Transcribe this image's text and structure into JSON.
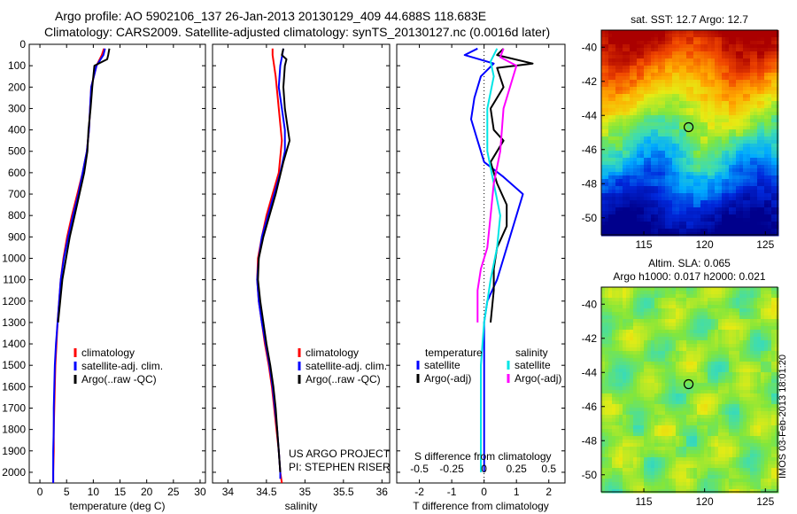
{
  "header": {
    "line1": "Argo profile: AO 5902106_137 26-Jan-2013 20130129_409 44.688S 118.683E",
    "line2": "Climatology: CARS2009. Satellite-adjusted climatology: synTS_20130127.nc (0.0016d later)"
  },
  "stamp": "IMOS 03-Feb-2013 18:01:20",
  "colors": {
    "climatology": "#ff0000",
    "satellite": "#0000ff",
    "argo": "#000000",
    "sat_salinity": "#00e5e5",
    "argo_salinity": "#ff00ff"
  },
  "chart_data": [
    {
      "id": "temperature",
      "type": "line",
      "xlabel": "temperature (deg C)",
      "ylabel": "",
      "xlim": [
        -2,
        31
      ],
      "ylim": [
        2050,
        0
      ],
      "xticks": [
        0,
        5,
        10,
        15,
        20,
        25,
        30
      ],
      "yticks": [
        0,
        100,
        200,
        300,
        400,
        500,
        600,
        700,
        800,
        900,
        1000,
        1100,
        1200,
        1300,
        1400,
        1500,
        1600,
        1700,
        1800,
        1900,
        2000
      ],
      "legend": [
        "climatology",
        "satellite-adj. clim.",
        "Argo(..raw -QC)"
      ],
      "series": [
        {
          "name": "climatology",
          "color": "#ff0000",
          "points": [
            [
              12.0,
              20
            ],
            [
              11.6,
              50
            ],
            [
              10.6,
              100
            ],
            [
              9.6,
              200
            ],
            [
              9.4,
              300
            ],
            [
              9.2,
              400
            ],
            [
              8.8,
              500
            ],
            [
              8.0,
              600
            ],
            [
              7.0,
              700
            ],
            [
              6.0,
              800
            ],
            [
              5.1,
              900
            ],
            [
              4.4,
              1000
            ],
            [
              3.9,
              1100
            ],
            [
              3.6,
              1200
            ],
            [
              3.3,
              1300
            ],
            [
              3.1,
              1400
            ],
            [
              2.9,
              1500
            ],
            [
              2.8,
              1600
            ],
            [
              2.7,
              1700
            ],
            [
              2.6,
              1800
            ],
            [
              2.6,
              1900
            ],
            [
              2.5,
              2000
            ],
            [
              2.5,
              2050
            ]
          ]
        },
        {
          "name": "satellite-adj. clim.",
          "color": "#0000ff",
          "points": [
            [
              12.2,
              20
            ],
            [
              11.9,
              50
            ],
            [
              10.6,
              100
            ],
            [
              9.6,
              200
            ],
            [
              9.4,
              300
            ],
            [
              9.2,
              400
            ],
            [
              8.8,
              500
            ],
            [
              8.0,
              600
            ],
            [
              7.2,
              700
            ],
            [
              6.2,
              800
            ],
            [
              5.3,
              900
            ],
            [
              4.5,
              1000
            ],
            [
              3.9,
              1100
            ],
            [
              3.6,
              1200
            ],
            [
              3.3,
              1300
            ],
            [
              3.0,
              1400
            ],
            [
              2.8,
              1500
            ],
            [
              2.7,
              1600
            ],
            [
              2.6,
              1700
            ],
            [
              2.6,
              1800
            ],
            [
              2.5,
              1900
            ],
            [
              2.5,
              2000
            ],
            [
              2.5,
              2050
            ]
          ]
        },
        {
          "name": "Argo(..raw -QC)",
          "color": "#000000",
          "points": [
            [
              13.0,
              20
            ],
            [
              12.8,
              50
            ],
            [
              12.6,
              70
            ],
            [
              10.2,
              100
            ],
            [
              9.8,
              200
            ],
            [
              9.5,
              300
            ],
            [
              9.1,
              400
            ],
            [
              8.9,
              500
            ],
            [
              8.3,
              600
            ],
            [
              7.4,
              700
            ],
            [
              6.5,
              800
            ],
            [
              5.6,
              900
            ],
            [
              4.9,
              1000
            ],
            [
              4.2,
              1100
            ],
            [
              3.8,
              1200
            ],
            [
              3.4,
              1300
            ]
          ]
        }
      ]
    },
    {
      "id": "salinity",
      "type": "line",
      "xlabel": "salinity",
      "ylabel": "",
      "xlim": [
        33.8,
        36.1
      ],
      "ylim": [
        2050,
        0
      ],
      "xticks": [
        34,
        34.5,
        35,
        35.5,
        36
      ],
      "legend": [
        "climatology",
        "satellite-adj. clim.",
        "Argo(..raw -QC)"
      ],
      "annotation": [
        "US ARGO PROJECT",
        "PI: STEPHEN RISER"
      ],
      "series": [
        {
          "name": "climatology",
          "color": "#ff0000",
          "points": [
            [
              34.58,
              20
            ],
            [
              34.58,
              50
            ],
            [
              34.62,
              150
            ],
            [
              34.66,
              300
            ],
            [
              34.7,
              450
            ],
            [
              34.66,
              600
            ],
            [
              34.58,
              700
            ],
            [
              34.5,
              800
            ],
            [
              34.44,
              900
            ],
            [
              34.39,
              1000
            ],
            [
              34.38,
              1100
            ],
            [
              34.4,
              1200
            ],
            [
              34.44,
              1300
            ],
            [
              34.48,
              1400
            ],
            [
              34.53,
              1500
            ],
            [
              34.57,
              1600
            ],
            [
              34.6,
              1700
            ],
            [
              34.63,
              1800
            ],
            [
              34.66,
              1900
            ],
            [
              34.68,
              2000
            ],
            [
              34.7,
              2050
            ]
          ]
        },
        {
          "name": "satellite-adj. clim.",
          "color": "#0000ff",
          "points": [
            [
              34.72,
              20
            ],
            [
              34.7,
              60
            ],
            [
              34.68,
              100
            ],
            [
              34.66,
              200
            ],
            [
              34.7,
              300
            ],
            [
              34.74,
              400
            ],
            [
              34.74,
              500
            ],
            [
              34.68,
              600
            ],
            [
              34.6,
              700
            ],
            [
              34.52,
              800
            ],
            [
              34.44,
              900
            ],
            [
              34.4,
              1000
            ],
            [
              34.38,
              1100
            ],
            [
              34.4,
              1200
            ],
            [
              34.44,
              1300
            ],
            [
              34.49,
              1400
            ],
            [
              34.54,
              1500
            ],
            [
              34.58,
              1600
            ],
            [
              34.61,
              1700
            ],
            [
              34.64,
              1800
            ],
            [
              34.66,
              1900
            ],
            [
              34.68,
              2000
            ],
            [
              34.68,
              2030
            ]
          ]
        },
        {
          "name": "Argo(..raw -QC)",
          "color": "#000000",
          "points": [
            [
              34.72,
              20
            ],
            [
              34.7,
              50
            ],
            [
              34.76,
              70
            ],
            [
              34.74,
              100
            ],
            [
              34.72,
              200
            ],
            [
              34.74,
              300
            ],
            [
              34.78,
              400
            ],
            [
              34.8,
              450
            ],
            [
              34.72,
              550
            ],
            [
              34.62,
              700
            ],
            [
              34.54,
              800
            ],
            [
              34.46,
              900
            ],
            [
              34.4,
              1000
            ],
            [
              34.39,
              1100
            ],
            [
              34.42,
              1200
            ],
            [
              34.46,
              1300
            ],
            [
              34.5,
              1400
            ],
            [
              34.55,
              1500
            ],
            [
              34.59,
              1600
            ],
            [
              34.62,
              1700
            ],
            [
              34.64,
              1800
            ],
            [
              34.66,
              1900
            ],
            [
              34.68,
              2000
            ]
          ]
        }
      ]
    },
    {
      "id": "difference",
      "type": "line",
      "xlabel": "T difference from climatology",
      "x2label": "S difference from climatology",
      "xlim": [
        -2.7,
        2.5
      ],
      "ylim": [
        2050,
        0
      ],
      "xticks": [
        -2,
        -1,
        0,
        1,
        2
      ],
      "x2ticks": [
        -0.5,
        -0.25,
        0,
        0.25,
        0.5
      ],
      "x2scale": 4,
      "legend_groups": [
        {
          "title": "temperature",
          "items": [
            "satellite",
            "Argo(-adj)"
          ]
        },
        {
          "title": "salinity",
          "items": [
            "satellite",
            "Argo(-adj)"
          ]
        }
      ],
      "series": [
        {
          "name": "satellite",
          "group": "temperature",
          "color": "#0000ff",
          "points": [
            [
              -0.2,
              20
            ],
            [
              -0.6,
              50
            ],
            [
              0.3,
              90
            ],
            [
              -0.1,
              150
            ],
            [
              -0.3,
              250
            ],
            [
              -0.4,
              350
            ],
            [
              -0.2,
              450
            ],
            [
              0.0,
              550
            ],
            [
              0.6,
              620
            ],
            [
              1.2,
              700
            ],
            [
              1.0,
              800
            ],
            [
              0.8,
              900
            ],
            [
              0.6,
              1000
            ],
            [
              0.4,
              1100
            ],
            [
              0.1,
              1200
            ],
            [
              0.0,
              1300
            ],
            [
              0.0,
              1500
            ],
            [
              0.0,
              1700
            ],
            [
              0.0,
              1900
            ],
            [
              0.0,
              2000
            ]
          ]
        },
        {
          "name": "Argo(-adj)",
          "group": "temperature",
          "color": "#000000",
          "points": [
            [
              0.6,
              20
            ],
            [
              0.4,
              50
            ],
            [
              1.5,
              90
            ],
            [
              0.4,
              110
            ],
            [
              0.6,
              200
            ],
            [
              0.2,
              300
            ],
            [
              0.3,
              400
            ],
            [
              0.6,
              450
            ],
            [
              0.2,
              550
            ],
            [
              0.4,
              650
            ],
            [
              0.7,
              750
            ],
            [
              0.7,
              850
            ],
            [
              0.4,
              950
            ],
            [
              0.3,
              1050
            ],
            [
              0.3,
              1150
            ],
            [
              0.2,
              1300
            ]
          ]
        },
        {
          "name": "satellite",
          "group": "salinity",
          "color": "#00e5e5",
          "points": [
            [
              0.4,
              20
            ],
            [
              0.2,
              80
            ],
            [
              0.3,
              150
            ],
            [
              0.1,
              300
            ],
            [
              0.1,
              500
            ],
            [
              0.3,
              650
            ],
            [
              0.5,
              800
            ],
            [
              0.4,
              950
            ],
            [
              0.2,
              1100
            ],
            [
              0.0,
              1300
            ],
            [
              -0.1,
              1500
            ],
            [
              -0.1,
              1700
            ],
            [
              -0.1,
              1900
            ],
            [
              -0.1,
              2000
            ]
          ]
        },
        {
          "name": "Argo(-adj)",
          "group": "salinity",
          "color": "#ff00ff",
          "points": [
            [
              0.6,
              20
            ],
            [
              0.5,
              60
            ],
            [
              1.0,
              100
            ],
            [
              0.8,
              200
            ],
            [
              0.6,
              300
            ],
            [
              0.5,
              500
            ],
            [
              0.3,
              650
            ],
            [
              0.2,
              800
            ],
            [
              0.1,
              950
            ],
            [
              -0.1,
              1050
            ],
            [
              -0.2,
              1150
            ],
            [
              -0.2,
              1300
            ]
          ]
        }
      ]
    },
    {
      "id": "sst-map",
      "type": "heatmap",
      "title": "sat. SST: 12.7 Argo: 12.7",
      "xlim": [
        111.5,
        126
      ],
      "ylim": [
        -51,
        -39
      ],
      "xticks": [
        115,
        120,
        125
      ],
      "yticks": [
        -40,
        -42,
        -44,
        -46,
        -48,
        -50
      ],
      "marker": [
        118.683,
        -44.688
      ]
    },
    {
      "id": "sla-map",
      "type": "heatmap",
      "title": [
        "Altim. SLA: 0.065",
        "Argo h1000: 0.017 h2000: 0.021"
      ],
      "xlim": [
        111.5,
        126
      ],
      "ylim": [
        -51,
        -39
      ],
      "xticks": [
        115,
        120,
        125
      ],
      "yticks": [
        -40,
        -42,
        -44,
        -46,
        -48,
        -50
      ],
      "marker": [
        118.683,
        -44.688
      ]
    }
  ]
}
